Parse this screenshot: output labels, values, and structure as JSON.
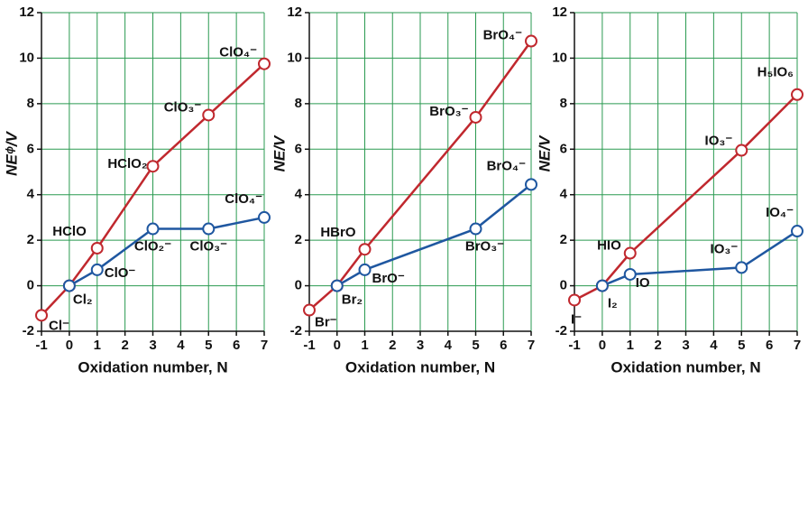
{
  "chart_data": [
    {
      "type": "line",
      "ylabel": "NEᶲ/V",
      "xlabel": "Oxidation number,  N",
      "xlim": [
        -1,
        7
      ],
      "xticks": [
        -1,
        0,
        1,
        2,
        3,
        4,
        5,
        6,
        7
      ],
      "ylim": [
        -2,
        12
      ],
      "yticks": [
        -2,
        0,
        2,
        4,
        6,
        8,
        10,
        12
      ],
      "grid": true,
      "series": [
        {
          "color": "#c0282e",
          "x": [
            -1,
            0,
            1,
            3,
            5,
            7
          ],
          "values": [
            -1.3,
            0,
            1.65,
            5.25,
            7.5,
            9.75
          ],
          "labels": [
            "Cl⁻",
            "Cl₂",
            "HClO",
            "HClO₂",
            "ClO₃⁻",
            "ClO₄⁻"
          ]
        },
        {
          "color": "#1f57a0",
          "x": [
            0,
            1,
            3,
            5,
            7
          ],
          "values": [
            0,
            0.7,
            2.5,
            2.5,
            3.0
          ],
          "labels": [
            null,
            "ClO⁻",
            "ClO₂⁻",
            "ClO₃⁻",
            "ClO₄⁻"
          ]
        }
      ]
    },
    {
      "type": "line",
      "ylabel": "NE/V",
      "xlabel": "Oxidation number,  N",
      "xlim": [
        -1,
        7
      ],
      "xticks": [
        -1,
        0,
        1,
        2,
        3,
        4,
        5,
        6,
        7
      ],
      "ylim": [
        -2,
        12
      ],
      "yticks": [
        -2,
        0,
        2,
        4,
        6,
        8,
        10,
        12
      ],
      "grid": true,
      "series": [
        {
          "color": "#c0282e",
          "x": [
            -1,
            0,
            1,
            5,
            7
          ],
          "values": [
            -1.07,
            0,
            1.6,
            7.4,
            10.75
          ],
          "labels": [
            "Br⁻",
            "Br₂",
            "HBrO",
            "BrO₃⁻",
            "BrO₄⁻"
          ]
        },
        {
          "color": "#1f57a0",
          "x": [
            0,
            1,
            5,
            7
          ],
          "values": [
            0,
            0.7,
            2.5,
            4.45
          ],
          "labels": [
            null,
            "BrO⁻",
            "BrO₃⁻",
            "BrO₄⁻"
          ]
        }
      ]
    },
    {
      "type": "line",
      "ylabel": "NE/V",
      "xlabel": "Oxidation number,  N",
      "xlim": [
        -1,
        7
      ],
      "xticks": [
        -1,
        0,
        1,
        2,
        3,
        4,
        5,
        6,
        7
      ],
      "ylim": [
        -2,
        12
      ],
      "yticks": [
        -2,
        0,
        2,
        4,
        6,
        8,
        10,
        12
      ],
      "grid": true,
      "series": [
        {
          "color": "#c0282e",
          "x": [
            -1,
            0,
            1,
            5,
            7
          ],
          "values": [
            -0.63,
            0,
            1.43,
            5.95,
            8.4
          ],
          "labels": [
            "I⁻",
            "I₂",
            "HIO",
            "IO₃⁻",
            "H₅IO₆"
          ]
        },
        {
          "color": "#1f57a0",
          "x": [
            0,
            1,
            5,
            7
          ],
          "values": [
            0,
            0.5,
            0.8,
            2.4
          ],
          "labels": [
            null,
            "IO",
            "IO₃⁻",
            "IO₄⁻"
          ]
        }
      ]
    }
  ]
}
